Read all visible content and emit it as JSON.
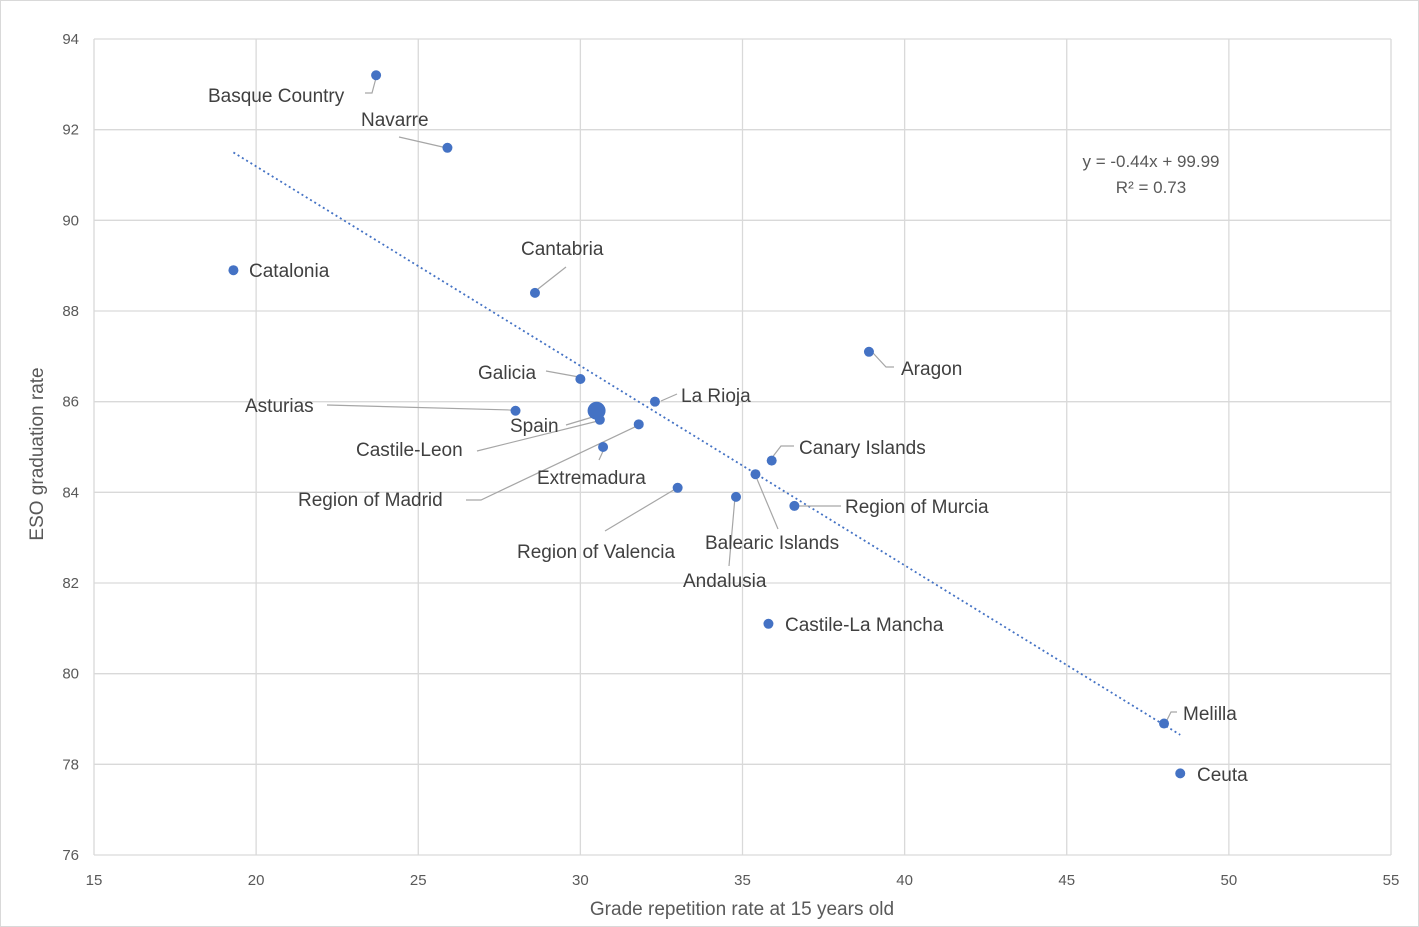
{
  "chart_data": {
    "type": "scatter",
    "xlabel": "Grade repetition rate at 15 years old",
    "ylabel": "ESO graduation rate",
    "xlim": [
      15,
      55
    ],
    "ylim": [
      76,
      94
    ],
    "x_ticks": [
      15,
      20,
      25,
      30,
      35,
      40,
      45,
      50,
      55
    ],
    "y_ticks": [
      76,
      78,
      80,
      82,
      84,
      86,
      88,
      90,
      92,
      94
    ],
    "grid": true,
    "points": [
      {
        "label": "Basque Country",
        "x": 23.7,
        "y": 93.2
      },
      {
        "label": "Navarre",
        "x": 25.9,
        "y": 91.6
      },
      {
        "label": "Catalonia",
        "x": 19.3,
        "y": 88.9
      },
      {
        "label": "Cantabria",
        "x": 28.6,
        "y": 88.4
      },
      {
        "label": "Aragon",
        "x": 38.9,
        "y": 87.1
      },
      {
        "label": "Galicia",
        "x": 30.0,
        "y": 86.5
      },
      {
        "label": "La Rioja",
        "x": 32.3,
        "y": 86.0
      },
      {
        "label": "Asturias",
        "x": 28.0,
        "y": 85.8
      },
      {
        "label": "Spain",
        "x": 30.5,
        "y": 85.8,
        "highlight": true
      },
      {
        "label": "Castile-Leon",
        "x": 30.6,
        "y": 85.6
      },
      {
        "label": "Region of Madrid",
        "x": 31.8,
        "y": 85.5
      },
      {
        "label": "Extremadura",
        "x": 30.7,
        "y": 85.0
      },
      {
        "label": "Canary Islands",
        "x": 35.9,
        "y": 84.7
      },
      {
        "label": "Balearic Islands",
        "x": 35.4,
        "y": 84.4
      },
      {
        "label": "Region of Valencia",
        "x": 33.0,
        "y": 84.1
      },
      {
        "label": "Andalusia",
        "x": 34.8,
        "y": 83.9
      },
      {
        "label": "Region of Murcia",
        "x": 36.6,
        "y": 83.7
      },
      {
        "label": "Castile-La Mancha",
        "x": 35.8,
        "y": 81.1
      },
      {
        "label": "Melilla",
        "x": 48.0,
        "y": 78.9
      },
      {
        "label": "Ceuta",
        "x": 48.5,
        "y": 77.8
      }
    ],
    "trendline": {
      "type": "linear",
      "slope": -0.44,
      "intercept": 99.99,
      "x_range": [
        19.3,
        48.5
      ],
      "equation": "y = -0.44x + 99.99",
      "r_squared": "R² = 0.73"
    }
  }
}
